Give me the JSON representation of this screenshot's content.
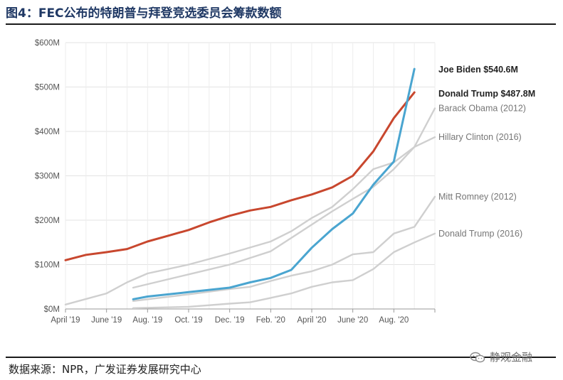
{
  "title": "图4：FEC公布的特朗普与拜登竞选委员会筹款数额",
  "source": "数据来源：NPR，广发证券发展研究中心",
  "watermark": "静观金融",
  "watermark_icon": "wechat-icon",
  "chart_data": {
    "type": "line",
    "ylim": [
      0,
      600
    ],
    "yticks": [
      0,
      100,
      200,
      300,
      400,
      500,
      600
    ],
    "ytick_labels": [
      "$0M",
      "$100M",
      "$200M",
      "$300M",
      "$400M",
      "$500M",
      "$600M"
    ],
    "x_range": [
      0,
      18
    ],
    "xticks": [
      0,
      2,
      4,
      6,
      8,
      10,
      12,
      14,
      16,
      18
    ],
    "xtick_labels": [
      "April '19",
      "June '19",
      "Aug. '19",
      "Oct. '19",
      "Dec. '19",
      "Feb. '20",
      "April '20",
      "June '20",
      "Aug. '20",
      ""
    ],
    "grid": true,
    "series": [
      {
        "name": "Barack Obama (2012)",
        "label": "Barack Obama (2012)",
        "color": "#cfcfcf",
        "emphasis": false,
        "points": [
          [
            3.3,
            48
          ],
          [
            6,
            78
          ],
          [
            8,
            100
          ],
          [
            9,
            115
          ],
          [
            10,
            130
          ],
          [
            11,
            160
          ],
          [
            12,
            190
          ],
          [
            13,
            220
          ],
          [
            14,
            248
          ],
          [
            15,
            275
          ],
          [
            16,
            315
          ],
          [
            17,
            365
          ],
          [
            18,
            452
          ]
        ]
      },
      {
        "name": "Hillary Clinton (2016)",
        "label": "Hillary Clinton (2016)",
        "color": "#cfcfcf",
        "emphasis": false,
        "points": [
          [
            0,
            10
          ],
          [
            2,
            35
          ],
          [
            3,
            60
          ],
          [
            4,
            80
          ],
          [
            6,
            100
          ],
          [
            8,
            125
          ],
          [
            10,
            152
          ],
          [
            11,
            175
          ],
          [
            12,
            205
          ],
          [
            13,
            230
          ],
          [
            14,
            270
          ],
          [
            15,
            315
          ],
          [
            16,
            330
          ],
          [
            17,
            365
          ],
          [
            18,
            387
          ]
        ]
      },
      {
        "name": "Mitt Romney (2012)",
        "label": "Mitt Romney (2012)",
        "color": "#cfcfcf",
        "emphasis": false,
        "points": [
          [
            3.3,
            18
          ],
          [
            6,
            33
          ],
          [
            8,
            45
          ],
          [
            9,
            50
          ],
          [
            10,
            63
          ],
          [
            11,
            75
          ],
          [
            12,
            85
          ],
          [
            13,
            100
          ],
          [
            14,
            123
          ],
          [
            15,
            128
          ],
          [
            16,
            170
          ],
          [
            17,
            185
          ],
          [
            18,
            253
          ]
        ]
      },
      {
        "name": "Donald Trump (2016)",
        "label": "Donald Trump (2016)",
        "color": "#cfcfcf",
        "emphasis": false,
        "points": [
          [
            3.3,
            2
          ],
          [
            6,
            5
          ],
          [
            8,
            12
          ],
          [
            9,
            15
          ],
          [
            10,
            25
          ],
          [
            11,
            35
          ],
          [
            12,
            50
          ],
          [
            13,
            60
          ],
          [
            14,
            65
          ],
          [
            15,
            90
          ],
          [
            16,
            128
          ],
          [
            17,
            150
          ],
          [
            18,
            170
          ]
        ]
      },
      {
        "name": "Donald Trump",
        "label": "Donald Trump $487.8M",
        "color": "#c8472e",
        "emphasis": true,
        "points": [
          [
            0,
            110
          ],
          [
            1,
            122
          ],
          [
            2,
            128
          ],
          [
            3,
            135
          ],
          [
            4,
            152
          ],
          [
            5,
            165
          ],
          [
            6,
            178
          ],
          [
            7,
            195
          ],
          [
            8,
            210
          ],
          [
            9,
            222
          ],
          [
            10,
            230
          ],
          [
            11,
            245
          ],
          [
            12,
            258
          ],
          [
            13,
            274
          ],
          [
            14,
            300
          ],
          [
            15,
            355
          ],
          [
            16,
            430
          ],
          [
            17,
            487.8
          ]
        ]
      },
      {
        "name": "Joe Biden",
        "label": "Joe Biden $540.6M",
        "color": "#4aa5d0",
        "emphasis": true,
        "points": [
          [
            3.3,
            22
          ],
          [
            4,
            28
          ],
          [
            6,
            38
          ],
          [
            8,
            48
          ],
          [
            9,
            60
          ],
          [
            10,
            70
          ],
          [
            11,
            88
          ],
          [
            12,
            138
          ],
          [
            13,
            180
          ],
          [
            14,
            215
          ],
          [
            15,
            280
          ],
          [
            16,
            332
          ],
          [
            17,
            540.6
          ]
        ]
      }
    ]
  }
}
